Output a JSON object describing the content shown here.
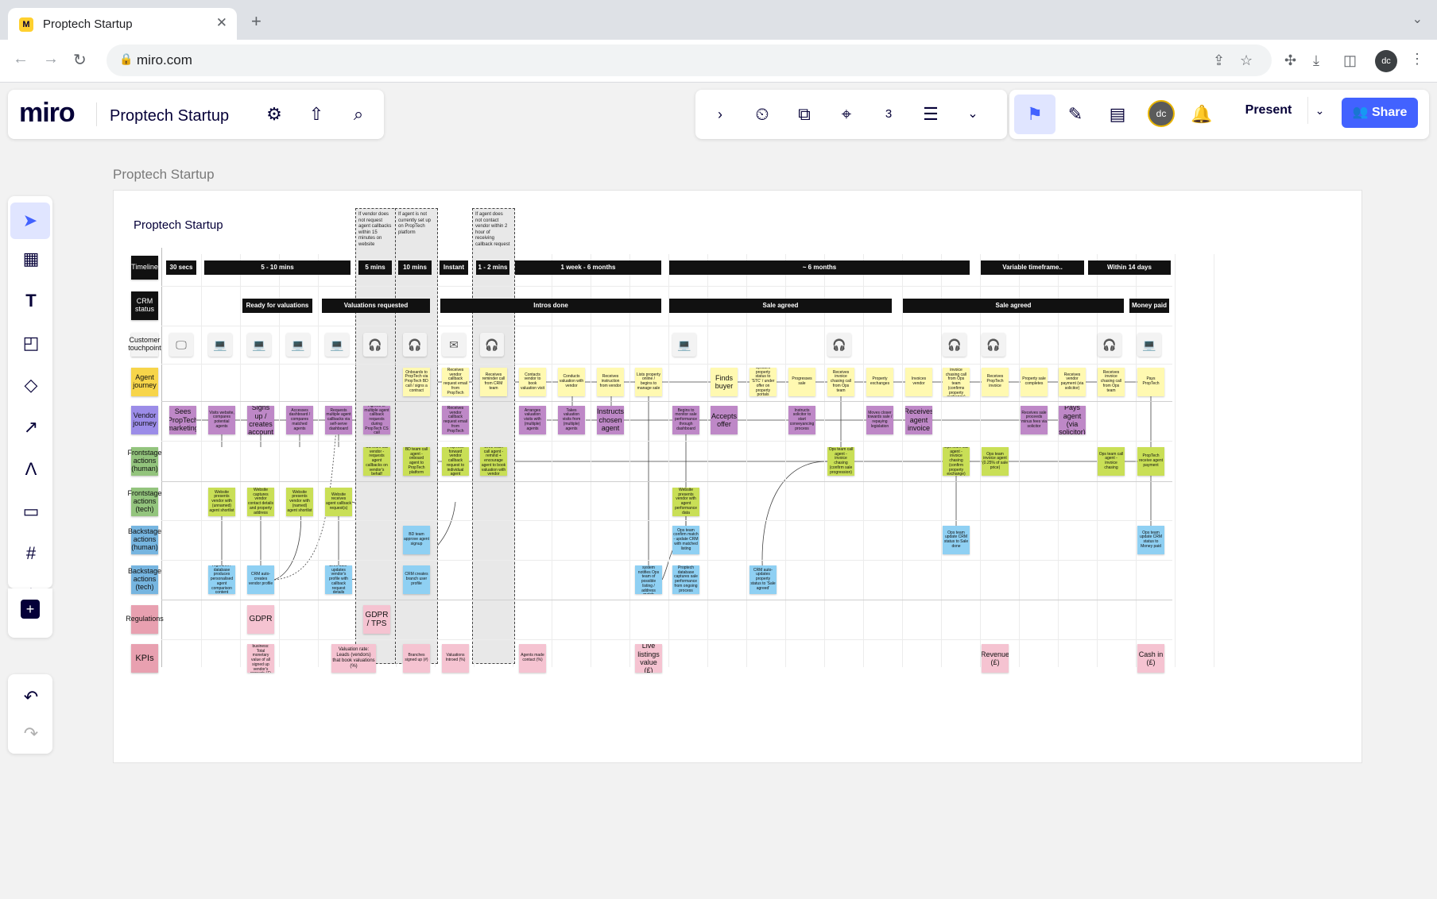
{
  "browser": {
    "tab_title": "Proptech Startup",
    "favicon": "M",
    "url": "miro.com",
    "profile_initials": "dc"
  },
  "topbar": {
    "logo": "miro",
    "board_title": "Proptech Startup",
    "present_label": "Present",
    "share_label": "Share",
    "avatar_initials": "dc",
    "card_count": "3"
  },
  "canvas": {
    "frame_label": "Proptech Startup",
    "inner_title": "Proptech Startup",
    "rows": [
      {
        "label": "Timeline",
        "color": "#111111",
        "text_color": "#ffffff"
      },
      {
        "label": "CRM status",
        "color": "#111111",
        "text_color": "#ffffff"
      },
      {
        "label": "Customer touchpoint",
        "color": "#f3f3f3",
        "text_color": "#111111"
      },
      {
        "label": "Agent journey",
        "color": "#f7d54a",
        "text_color": "#111111"
      },
      {
        "label": "Vendor journey",
        "color": "#9b8ce8",
        "text_color": "#111111"
      },
      {
        "label": "Frontstage actions (human)",
        "color": "#93c47d",
        "text_color": "#111111"
      },
      {
        "label": "Frontstage actions (tech)",
        "color": "#93c47d",
        "text_color": "#111111"
      },
      {
        "label": "Backstage actions (human)",
        "color": "#76b5e0",
        "text_color": "#111111"
      },
      {
        "label": "Backstage actions (tech)",
        "color": "#76b5e0",
        "text_color": "#111111"
      },
      {
        "label": "Regulations",
        "color": "#e8a0b0",
        "text_color": "#111111"
      },
      {
        "label": "KPIs",
        "color": "#e8a0b0",
        "text_color": "#111111"
      }
    ],
    "timeline": [
      "30 secs",
      "5 - 10 mins",
      "5 mins",
      "10 mins",
      "Instant",
      "1 - 2 mins",
      "1 week - 6 months",
      "~ 6 months",
      "Variable timeframe..",
      "Within 14 days"
    ],
    "crm": [
      "Ready for valuations",
      "Valuations requested",
      "Intros done",
      "Sale agreed",
      "Sale agreed",
      "Money paid"
    ],
    "zone_notes": [
      "If vendor does not request agent callbacks within 15 minutes on website",
      "If agent is not currently set up on PropTech platform",
      "If agent does not contact vendor within 2 hour of receiving callback request"
    ],
    "touchpoints": [
      "🖵",
      "💻",
      "💻",
      "💻",
      "💻",
      "🎧",
      "🎧",
      "✉",
      "🎧",
      "💻",
      "🎧",
      "🎧",
      "🎧",
      "🎧",
      "💻"
    ],
    "agent": [
      "Onboards to PropTech via PropTech BD call / signs a contract",
      "Receives vendor callback request email from PropTech",
      "Receives reminder call from CRM team",
      "Contacts vendor to book valuation visit",
      "Conducts valuation with vendor",
      "Receives instruction from vendor",
      "Lists property online / begins to manage sale",
      "Finds buyer",
      "Updates property status to 'STC' / under offer on property portals",
      "Progresses sale",
      "Receives invoice chasing call from Ops team",
      "Property exchanges",
      "Invoices vendor",
      "Receives invoice chasing call from Ops team (confirms property exchange)",
      "Receives PropTech invoice",
      "Property sale completes",
      "Receives vendor payment (via solicitor)",
      "Receives invoice chasing call from Ops team",
      "Pays PropTech"
    ],
    "vendor": [
      "Sees PropTech marketing",
      "Visits website, compares potential agents",
      "Signs up / creates account",
      "Accesses dashboard / compares matched agents",
      "Requests multiple agent callbacks via self-serve dashboard",
      "Agrees to multiple agent callback requests during PropTech CS call",
      "Receives vendor callback request email from PropTech",
      "Arranges valuation visits with (multiple) agents",
      "Takes valuation visits from (multiple) agents",
      "Instructs chosen agent",
      "Begins to monitor sale performance through dashboard",
      "Accepts offer",
      "Instructs solicitor to start conveyancing process",
      "Moves closer towards sale / repaying legislation",
      "Receives agent invoice",
      "Receives sale proceeds minus fees via solicitor",
      "Pays agent (via solicitor)"
    ],
    "front_human": [
      "CS team call vendor - requests agent callbacks on vendor's behalf",
      "BD team call agent - onboard agent to PropTech platform",
      "PropTech forward vendor callback request to individual agent",
      "CRM team call agent - remind + encourage agent to book valuation with vendor",
      "Ops team call agent - invoice chasing (confirm sale progression)",
      "Ops team call agent - invoice chasing (confirm property exchange)",
      "Ops team invoice agent (0.25% of sale price)",
      "Ops team call agent - invoice chasing",
      "PropTech receive agent payment"
    ],
    "front_tech": [
      "Website presents vendor with (unnamed) agent shortlist",
      "Website captures vendor contact details and property address",
      "Website presents vendor with (named) agent shortlist",
      "Website receives agent callback request(s)",
      "Website presents vendor with agent performance data"
    ],
    "back_human": [
      "BD team approve agent signup",
      "Ops team confirm match - update CRM with matched listing",
      "Ops team update CRM status to Sale done",
      "Ops team update CRM status to Money paid"
    ],
    "back_tech": [
      "Algorithm / database produces personalised agent comparison content",
      "CRM auto-creates vendor profile",
      "CRM auto-updates vendor's profile with callback request details",
      "CRM creates branch user profile",
      "Match-making system notifies Ops team of possible listing / address match",
      "Proptech database captures sale performance from ongoing process",
      "CRM auto-updates property status to 'Sale agreed'"
    ],
    "regulations": [
      "GDPR",
      "GDPR / TPS"
    ],
    "kpis": [
      "New business: Total monetary value of all signed up vendor's property (£)",
      "Valuation rate: Leads (vendors) that book valuations (%)",
      "Branches signed up (#)",
      "Valuations Introed (%)",
      "Agents made contact (%)",
      "Live listings value (£)",
      "Revenue (£)",
      "Cash in (£)"
    ]
  }
}
